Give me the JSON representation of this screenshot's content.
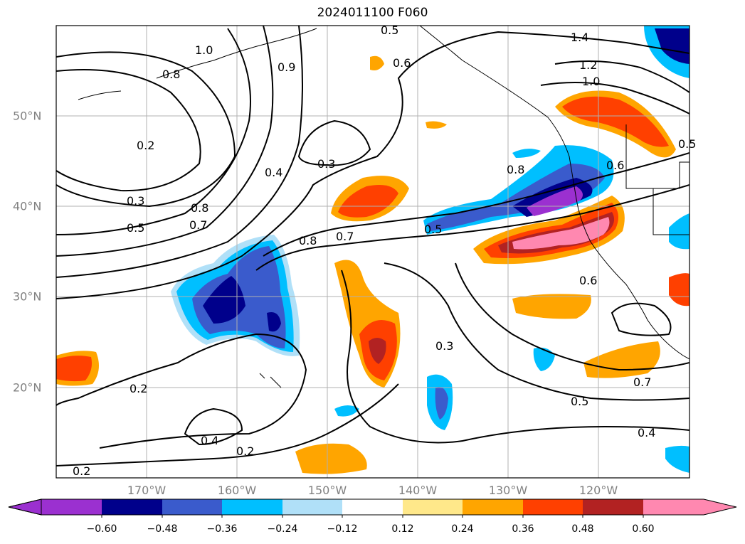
{
  "title": "2024011100 F060",
  "axes": {
    "x_ticks": [
      "170°W",
      "160°W",
      "150°W",
      "140°W",
      "130°W",
      "120°W"
    ],
    "y_ticks": [
      "50°N",
      "40°N",
      "30°N",
      "20°N"
    ]
  },
  "contour_labels": [
    "0.5",
    "0.6",
    "1.4",
    "1.2",
    "1.0",
    "1.0",
    "0.8",
    "0.9",
    "0.2",
    "0.3",
    "0.4",
    "0.3",
    "0.5",
    "0.8",
    "0.7",
    "0.8",
    "0.7",
    "0.5",
    "0.6",
    "0.6",
    "0.3",
    "0.2",
    "0.4",
    "0.2",
    "0.5",
    "0.7",
    "0.4",
    "0.2",
    "0.8",
    "0.5"
  ],
  "colorbar": {
    "labels": [
      "−0.60",
      "−0.48",
      "−0.36",
      "−0.24",
      "−0.12",
      "0.12",
      "0.24",
      "0.36",
      "0.48",
      "0.60"
    ],
    "colors": [
      "#9b30d0",
      "#00008b",
      "#3a5bcc",
      "#00bfff",
      "#b0e0f8",
      "#ffffff",
      "#ffe88a",
      "#ffa500",
      "#ff4000",
      "#b22222",
      "#ff88b0"
    ]
  }
}
